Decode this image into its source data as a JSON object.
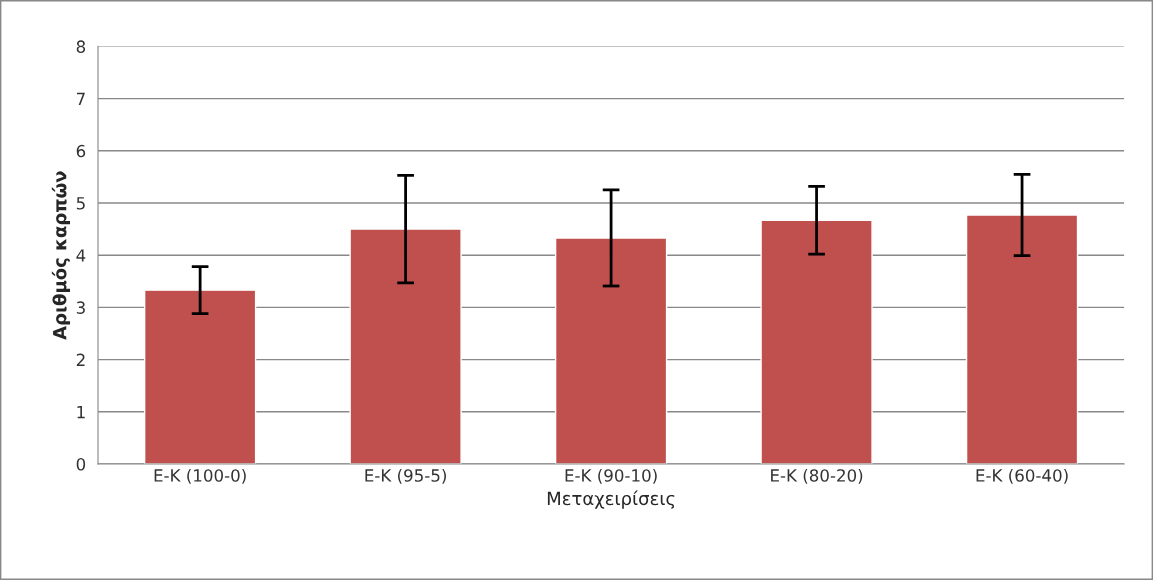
{
  "chart_data": {
    "type": "bar",
    "xlabel": "Μεταχειρίσεις",
    "ylabel": "Αριθμός καρπών",
    "categories": [
      "Ε-Κ (100-0)",
      "Ε-Κ (95-5)",
      "Ε-Κ (90-10)",
      "Ε-Κ (80-20)",
      "Ε-Κ (60-40)"
    ],
    "values": [
      3.33,
      4.5,
      4.33,
      4.67,
      4.77
    ],
    "errors": [
      0.45,
      1.03,
      0.92,
      0.65,
      0.78
    ],
    "color": "#c0504d",
    "ylim": [
      0,
      8
    ],
    "yticks": [
      0,
      1,
      2,
      3,
      4,
      5,
      6,
      7,
      8
    ],
    "grid": "y",
    "legend": false
  }
}
